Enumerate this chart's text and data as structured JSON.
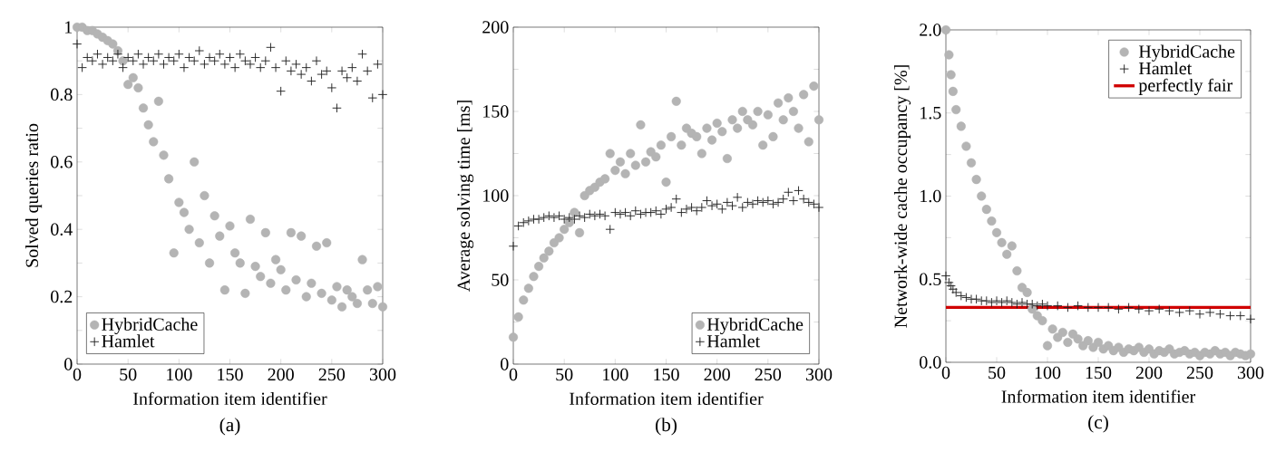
{
  "chart_data": [
    {
      "type": "scatter",
      "xlabel": "Information item identifier",
      "ylabel": "Solved queries ratio",
      "annotations": [
        "(a)"
      ],
      "xlim": [
        0,
        300
      ],
      "ylim": [
        0,
        1
      ],
      "xticks": [
        0,
        50,
        100,
        150,
        200,
        250,
        300
      ],
      "yticks": [
        0,
        {
          "value": 0.1,
          "label": null
        },
        0.2,
        {
          "value": 0.3,
          "label": null
        },
        0.4,
        {
          "value": 0.5,
          "label": null
        },
        0.6,
        {
          "value": 0.7,
          "label": null
        },
        0.8,
        {
          "value": 0.9,
          "label": null
        },
        1
      ],
      "legend": "bottom left",
      "series": [
        {
          "name": "HybridCache",
          "color": "#b4b4b4",
          "marker": "circle",
          "x": [
            0,
            5,
            10,
            15,
            20,
            25,
            30,
            35,
            40,
            45,
            50,
            55,
            60,
            65,
            70,
            75,
            80,
            85,
            90,
            95,
            100,
            105,
            110,
            115,
            120,
            125,
            130,
            135,
            140,
            145,
            150,
            155,
            160,
            165,
            170,
            175,
            180,
            185,
            190,
            195,
            200,
            205,
            210,
            215,
            220,
            225,
            230,
            235,
            240,
            245,
            250,
            255,
            260,
            265,
            270,
            275,
            280,
            285,
            290,
            295,
            300
          ],
          "values": [
            1.0,
            1.0,
            0.99,
            0.99,
            0.98,
            0.97,
            0.96,
            0.95,
            0.93,
            0.9,
            0.83,
            0.85,
            0.82,
            0.76,
            0.71,
            0.66,
            0.78,
            0.62,
            0.55,
            0.33,
            0.48,
            0.45,
            0.4,
            0.6,
            0.36,
            0.5,
            0.3,
            0.44,
            0.38,
            0.22,
            0.41,
            0.33,
            0.3,
            0.21,
            0.43,
            0.29,
            0.26,
            0.39,
            0.24,
            0.31,
            0.28,
            0.22,
            0.39,
            0.25,
            0.38,
            0.2,
            0.24,
            0.35,
            0.21,
            0.36,
            0.19,
            0.23,
            0.17,
            0.22,
            0.2,
            0.18,
            0.31,
            0.22,
            0.18,
            0.23,
            0.17
          ]
        },
        {
          "name": "Hamlet",
          "color": "#202020",
          "marker": "cross",
          "x": [
            0,
            5,
            10,
            15,
            20,
            25,
            30,
            35,
            40,
            45,
            50,
            55,
            60,
            65,
            70,
            75,
            80,
            85,
            90,
            95,
            100,
            105,
            110,
            115,
            120,
            125,
            130,
            135,
            140,
            145,
            150,
            155,
            160,
            165,
            170,
            175,
            180,
            185,
            190,
            195,
            200,
            205,
            210,
            215,
            220,
            225,
            230,
            235,
            240,
            245,
            250,
            255,
            260,
            265,
            270,
            275,
            280,
            285,
            290,
            295,
            300
          ],
          "values": [
            0.95,
            0.88,
            0.91,
            0.9,
            0.92,
            0.89,
            0.91,
            0.9,
            0.92,
            0.88,
            0.91,
            0.9,
            0.92,
            0.89,
            0.91,
            0.9,
            0.92,
            0.89,
            0.91,
            0.9,
            0.92,
            0.88,
            0.91,
            0.9,
            0.93,
            0.89,
            0.91,
            0.9,
            0.92,
            0.89,
            0.91,
            0.88,
            0.92,
            0.9,
            0.89,
            0.91,
            0.88,
            0.9,
            0.94,
            0.88,
            0.81,
            0.9,
            0.87,
            0.89,
            0.86,
            0.88,
            0.84,
            0.9,
            0.86,
            0.87,
            0.82,
            0.76,
            0.87,
            0.85,
            0.88,
            0.84,
            0.92,
            0.87,
            0.79,
            0.89,
            0.8
          ]
        }
      ]
    },
    {
      "type": "scatter",
      "xlabel": "Information item identifier",
      "ylabel": "Average solving time [ms]",
      "annotations": [
        "(b)"
      ],
      "xlim": [
        0,
        300
      ],
      "ylim": [
        0,
        200
      ],
      "xticks": [
        0,
        50,
        100,
        150,
        200,
        250,
        300
      ],
      "yticks": [
        0,
        {
          "value": 25,
          "label": null
        },
        50,
        {
          "value": 75,
          "label": null
        },
        100,
        {
          "value": 125,
          "label": null
        },
        150,
        {
          "value": 175,
          "label": null
        },
        200
      ],
      "legend": "bottom right",
      "series": [
        {
          "name": "HybridCache",
          "color": "#b4b4b4",
          "marker": "circle",
          "x": [
            0,
            5,
            10,
            15,
            20,
            25,
            30,
            35,
            40,
            45,
            50,
            55,
            60,
            65,
            70,
            75,
            80,
            85,
            90,
            95,
            100,
            105,
            110,
            115,
            120,
            125,
            130,
            135,
            140,
            145,
            150,
            155,
            160,
            165,
            170,
            175,
            180,
            185,
            190,
            195,
            200,
            205,
            210,
            215,
            220,
            225,
            230,
            235,
            240,
            245,
            250,
            255,
            260,
            265,
            270,
            275,
            280,
            285,
            290,
            295,
            300
          ],
          "values": [
            16,
            28,
            38,
            45,
            52,
            58,
            63,
            67,
            72,
            75,
            80,
            84,
            90,
            78,
            100,
            103,
            105,
            108,
            110,
            125,
            115,
            120,
            113,
            125,
            118,
            142,
            120,
            126,
            123,
            130,
            108,
            135,
            156,
            130,
            140,
            137,
            135,
            125,
            140,
            133,
            143,
            138,
            122,
            145,
            140,
            150,
            145,
            142,
            150,
            130,
            148,
            135,
            155,
            145,
            158,
            150,
            140,
            160,
            132,
            165,
            145
          ]
        },
        {
          "name": "Hamlet",
          "color": "#202020",
          "marker": "cross",
          "x": [
            0,
            5,
            10,
            15,
            20,
            25,
            30,
            35,
            40,
            45,
            50,
            55,
            60,
            65,
            70,
            75,
            80,
            85,
            90,
            95,
            100,
            105,
            110,
            115,
            120,
            125,
            130,
            135,
            140,
            145,
            150,
            155,
            160,
            165,
            170,
            175,
            180,
            185,
            190,
            195,
            200,
            205,
            210,
            215,
            220,
            225,
            230,
            235,
            240,
            245,
            250,
            255,
            260,
            265,
            270,
            275,
            280,
            285,
            290,
            295,
            300
          ],
          "values": [
            70,
            82,
            84,
            85,
            86,
            86,
            87,
            88,
            87,
            88,
            86,
            87,
            86,
            88,
            87,
            89,
            88,
            89,
            88,
            80,
            90,
            89,
            90,
            88,
            91,
            89,
            90,
            90,
            91,
            89,
            92,
            93,
            98,
            90,
            92,
            93,
            91,
            93,
            97,
            94,
            95,
            92,
            96,
            94,
            99,
            93,
            96,
            95,
            97,
            96,
            97,
            95,
            96,
            98,
            102,
            97,
            103,
            98,
            96,
            95,
            93
          ]
        }
      ]
    },
    {
      "type": "scatter",
      "xlabel": "Information item identifier",
      "ylabel": "Network-wide cache occupancy [%]",
      "annotations": [
        "(c)"
      ],
      "xlim": [
        0,
        300
      ],
      "ylim": [
        0,
        2
      ],
      "xticks": [
        0,
        50,
        100,
        150,
        200,
        250,
        300
      ],
      "yticks": [
        {
          "value": 0,
          "label": "0.0"
        },
        {
          "value": 0.25,
          "label": null
        },
        {
          "value": 0.5,
          "label": "0.5"
        },
        {
          "value": 0.75,
          "label": null
        },
        {
          "value": 1,
          "label": "1.0"
        },
        {
          "value": 1.25,
          "label": null
        },
        {
          "value": 1.5,
          "label": "1.5"
        },
        {
          "value": 1.75,
          "label": null
        },
        {
          "value": 2,
          "label": "2.0"
        }
      ],
      "legend": "top right",
      "series": [
        {
          "name": "HybridCache",
          "color": "#b4b4b4",
          "marker": "circle",
          "x": [
            0,
            3,
            5,
            7,
            10,
            15,
            20,
            25,
            30,
            35,
            40,
            45,
            50,
            55,
            60,
            65,
            70,
            75,
            80,
            85,
            90,
            95,
            100,
            105,
            110,
            115,
            120,
            125,
            130,
            135,
            140,
            145,
            150,
            155,
            160,
            165,
            170,
            175,
            180,
            185,
            190,
            195,
            200,
            205,
            210,
            215,
            220,
            225,
            230,
            235,
            240,
            245,
            250,
            255,
            260,
            265,
            270,
            275,
            280,
            285,
            290,
            295,
            300
          ],
          "values": [
            2.0,
            1.85,
            1.73,
            1.63,
            1.52,
            1.42,
            1.3,
            1.2,
            1.1,
            1.0,
            0.92,
            0.85,
            0.78,
            0.72,
            0.65,
            0.7,
            0.55,
            0.45,
            0.42,
            0.32,
            0.28,
            0.25,
            0.1,
            0.2,
            0.15,
            0.18,
            0.12,
            0.17,
            0.14,
            0.1,
            0.13,
            0.09,
            0.12,
            0.08,
            0.1,
            0.07,
            0.09,
            0.06,
            0.08,
            0.07,
            0.09,
            0.06,
            0.08,
            0.05,
            0.07,
            0.06,
            0.08,
            0.05,
            0.06,
            0.07,
            0.05,
            0.06,
            0.04,
            0.06,
            0.05,
            0.07,
            0.05,
            0.06,
            0.04,
            0.06,
            0.05,
            0.04,
            0.05
          ]
        },
        {
          "name": "Hamlet",
          "color": "#202020",
          "marker": "cross",
          "x": [
            0,
            3,
            5,
            7,
            10,
            15,
            20,
            25,
            30,
            35,
            40,
            45,
            50,
            55,
            60,
            65,
            70,
            75,
            80,
            85,
            90,
            95,
            100,
            110,
            120,
            130,
            140,
            150,
            160,
            170,
            180,
            190,
            200,
            210,
            220,
            230,
            240,
            250,
            260,
            270,
            280,
            290,
            300
          ],
          "values": [
            0.52,
            0.48,
            0.46,
            0.44,
            0.42,
            0.4,
            0.39,
            0.38,
            0.38,
            0.37,
            0.37,
            0.36,
            0.37,
            0.36,
            0.37,
            0.36,
            0.35,
            0.36,
            0.35,
            0.35,
            0.34,
            0.35,
            0.34,
            0.34,
            0.33,
            0.34,
            0.33,
            0.33,
            0.33,
            0.32,
            0.33,
            0.32,
            0.31,
            0.32,
            0.31,
            0.3,
            0.31,
            0.29,
            0.3,
            0.29,
            0.28,
            0.28,
            0.26
          ]
        },
        {
          "name": "perfectly fair",
          "type": "line",
          "line_style": "solid",
          "color": "#d00000",
          "x": [
            0,
            300
          ],
          "values": [
            0.33,
            0.33
          ]
        }
      ]
    }
  ]
}
